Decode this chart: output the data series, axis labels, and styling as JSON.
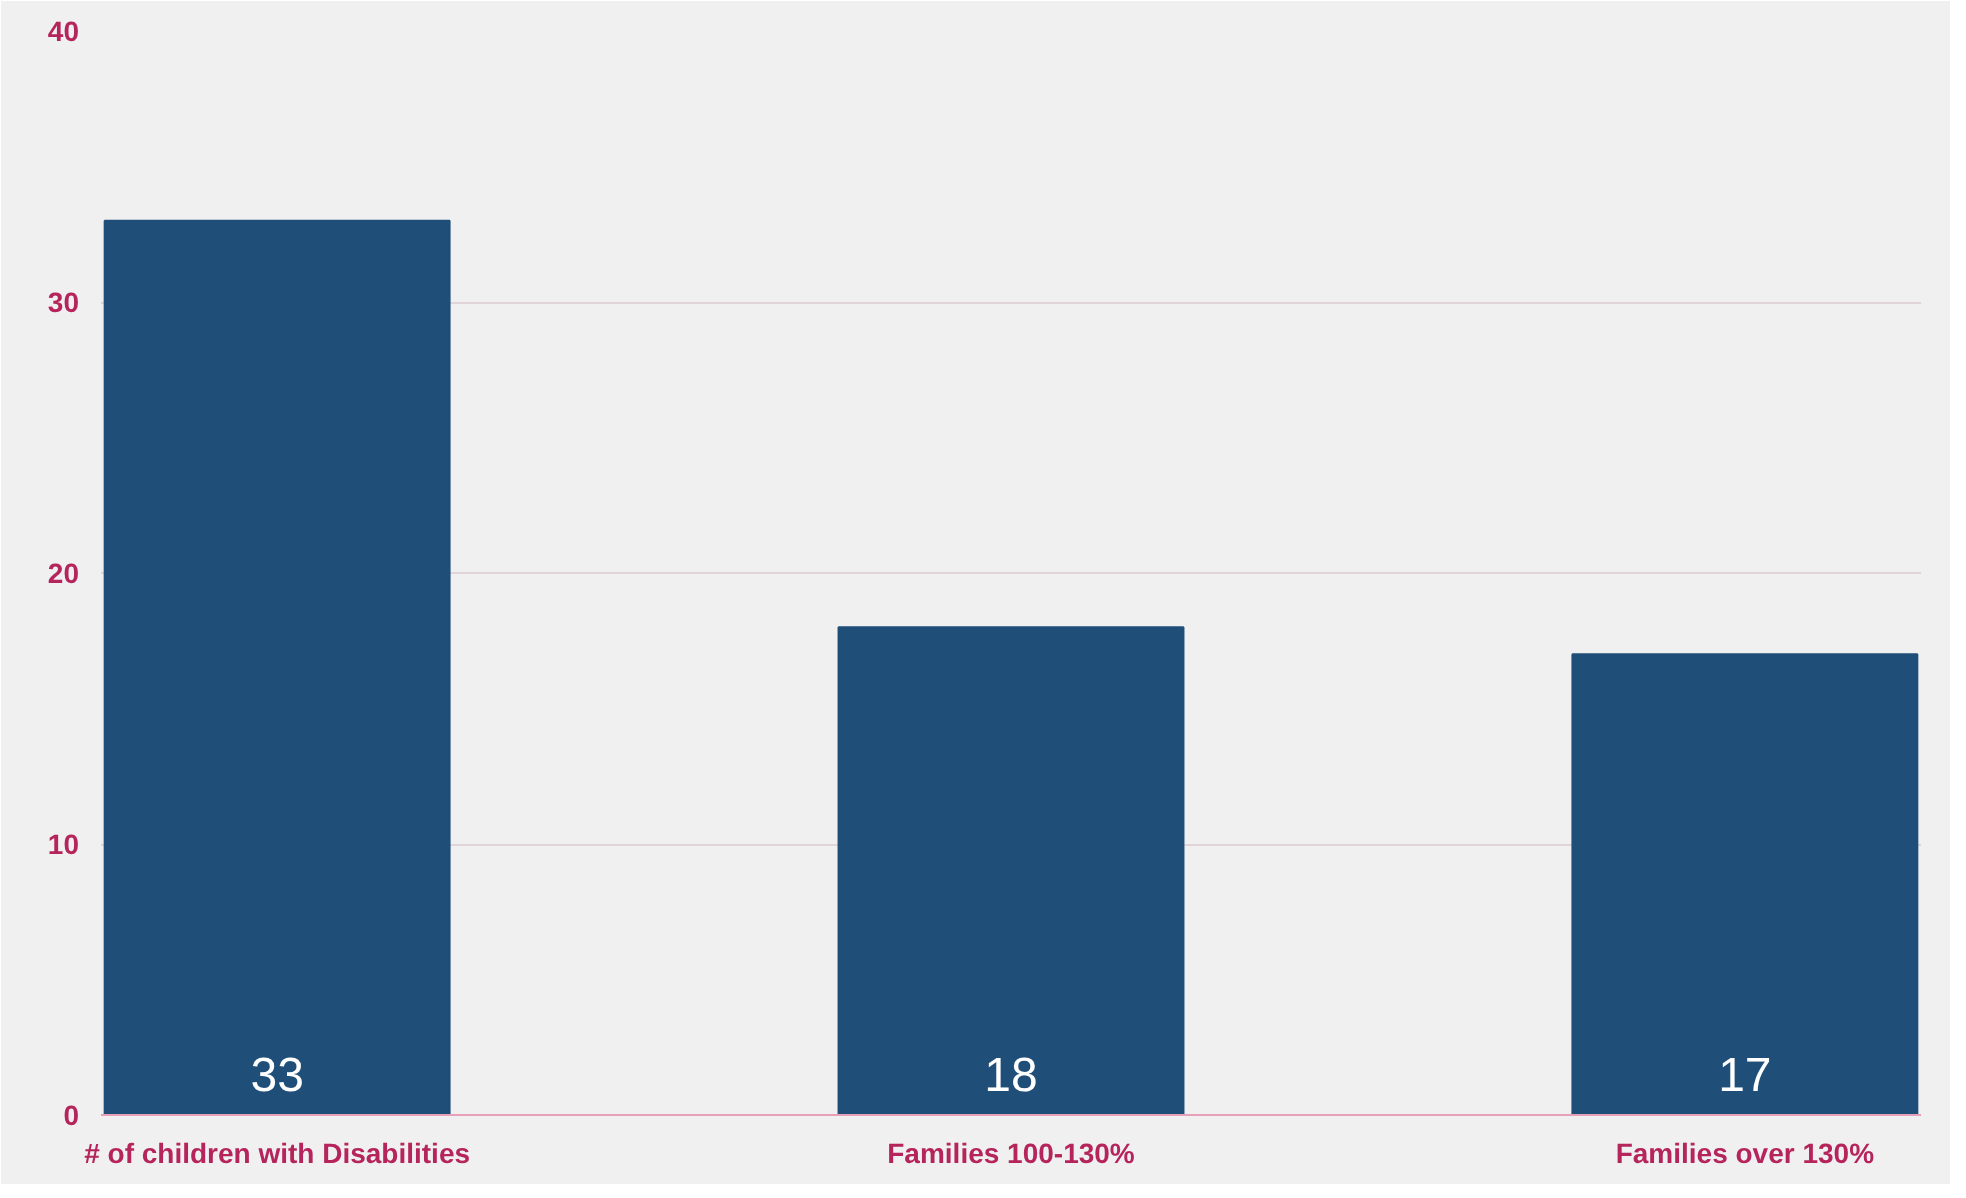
{
  "chart_data": {
    "type": "bar",
    "categories": [
      "# of children with Disabilities",
      "Families 100-130%",
      "Families over 130%"
    ],
    "values": [
      33,
      18,
      17
    ],
    "color": "#1f4e79",
    "ylim": [
      0,
      40
    ],
    "yticks": [
      0,
      10,
      20,
      30,
      40
    ],
    "grid": "y",
    "data_labels": true
  }
}
